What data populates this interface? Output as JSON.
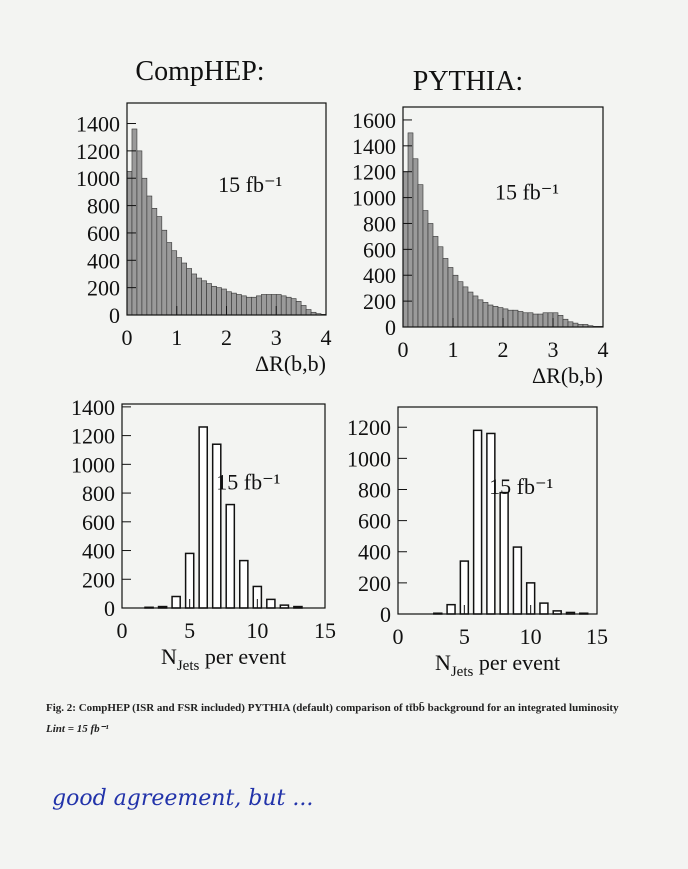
{
  "column_titles": [
    "CompHEP:",
    "PYTHIA:"
  ],
  "chart_data": [
    {
      "type": "histogram",
      "xlabel": "ΔR(b,b)",
      "annotation": "15 fb⁻¹",
      "bins": [
        0,
        0.1,
        0.2,
        0.3,
        0.4,
        0.5,
        0.6,
        0.7,
        0.8,
        0.9,
        1,
        1.1,
        1.2,
        1.3,
        1.4,
        1.5,
        1.6,
        1.7,
        1.8,
        1.9,
        2,
        2.1,
        2.2,
        2.3,
        2.4,
        2.5,
        2.6,
        2.7,
        2.8,
        2.9,
        3,
        3.1,
        3.2,
        3.3,
        3.4,
        3.5,
        3.6,
        3.7,
        3.8,
        3.9,
        4
      ],
      "values": [
        1050,
        1360,
        1200,
        1000,
        870,
        780,
        720,
        620,
        530,
        470,
        420,
        380,
        340,
        300,
        270,
        250,
        230,
        210,
        200,
        190,
        170,
        160,
        150,
        140,
        130,
        130,
        140,
        150,
        150,
        150,
        150,
        140,
        130,
        120,
        100,
        70,
        40,
        20,
        10,
        5
      ],
      "xlim": [
        0,
        4
      ],
      "xticks": [
        0,
        1,
        2,
        3,
        4
      ],
      "ylim": [
        0,
        1550
      ],
      "yticks": [
        0,
        200,
        400,
        600,
        800,
        1000,
        1200,
        1400
      ],
      "color": "#9a9a9a"
    },
    {
      "type": "histogram",
      "xlabel": "ΔR(b,b)",
      "annotation": "15 fb⁻¹",
      "bins": [
        0,
        0.1,
        0.2,
        0.3,
        0.4,
        0.5,
        0.6,
        0.7,
        0.8,
        0.9,
        1,
        1.1,
        1.2,
        1.3,
        1.4,
        1.5,
        1.6,
        1.7,
        1.8,
        1.9,
        2,
        2.1,
        2.2,
        2.3,
        2.4,
        2.5,
        2.6,
        2.7,
        2.8,
        2.9,
        3,
        3.1,
        3.2,
        3.3,
        3.4,
        3.5,
        3.6,
        3.7,
        3.8,
        3.9,
        4
      ],
      "values": [
        1200,
        1500,
        1300,
        1100,
        900,
        800,
        700,
        620,
        530,
        460,
        400,
        350,
        310,
        270,
        240,
        210,
        190,
        170,
        160,
        150,
        140,
        130,
        130,
        120,
        110,
        110,
        100,
        100,
        110,
        110,
        110,
        90,
        60,
        40,
        30,
        20,
        20,
        10,
        5,
        5
      ],
      "xlim": [
        0,
        4
      ],
      "xticks": [
        0,
        1,
        2,
        3,
        4
      ],
      "ylim": [
        0,
        1700
      ],
      "yticks": [
        0,
        200,
        400,
        600,
        800,
        1000,
        1200,
        1400,
        1600
      ],
      "color": "#9a9a9a"
    },
    {
      "type": "bar",
      "xlabel_parts": [
        "N",
        "Jets",
        " per event"
      ],
      "annotation": "15 fb⁻¹",
      "x": [
        1,
        2,
        3,
        4,
        5,
        6,
        7,
        8,
        9,
        10,
        11,
        12,
        13,
        14
      ],
      "values": [
        0,
        5,
        10,
        80,
        380,
        1260,
        1140,
        720,
        330,
        150,
        60,
        20,
        10,
        0
      ],
      "xlim": [
        0,
        15
      ],
      "xticks": [
        0,
        5,
        10,
        15
      ],
      "ylim": [
        0,
        1420
      ],
      "yticks": [
        0,
        200,
        400,
        600,
        800,
        1000,
        1200,
        1400
      ],
      "color": "#ffffff"
    },
    {
      "type": "bar",
      "xlabel_parts": [
        "N",
        "Jets",
        " per event"
      ],
      "annotation": "15 fb⁻¹",
      "x": [
        1,
        2,
        3,
        4,
        5,
        6,
        7,
        8,
        9,
        10,
        11,
        12,
        13,
        14
      ],
      "values": [
        0,
        0,
        5,
        60,
        340,
        1180,
        1160,
        780,
        430,
        200,
        70,
        20,
        10,
        5
      ],
      "xlim": [
        0,
        15
      ],
      "xticks": [
        0,
        5,
        10,
        15
      ],
      "ylim": [
        0,
        1330
      ],
      "yticks": [
        0,
        200,
        400,
        600,
        800,
        1000,
        1200
      ],
      "color": "#ffffff"
    }
  ],
  "caption": [
    "Fig. 2: CompHEP (ISR and FSR included) PYTHIA (default) comparison of tt̄bb̄ background for an integrated luminosity",
    "Lint = 15 fb⁻¹"
  ],
  "note": "good agreement, but ..."
}
